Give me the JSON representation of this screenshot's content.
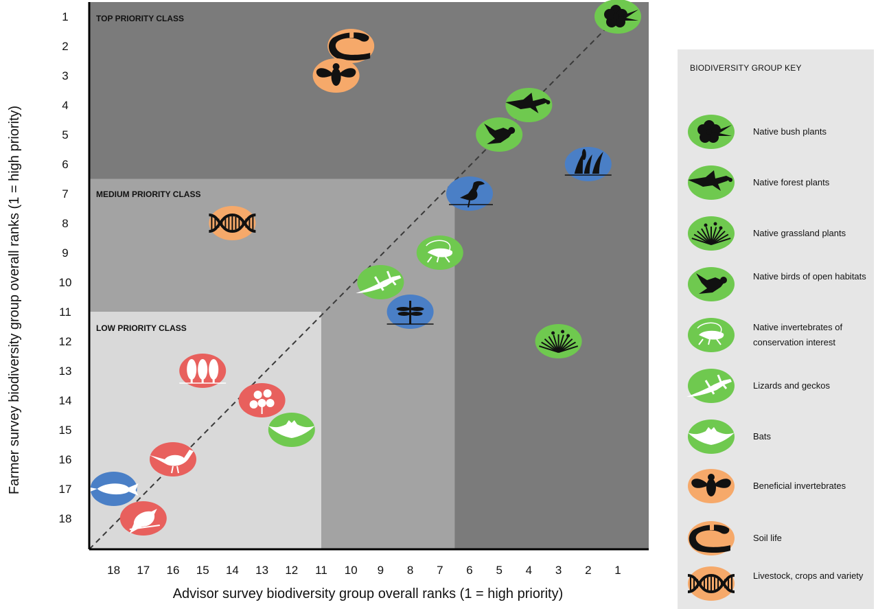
{
  "chart_data": {
    "type": "scatter",
    "xlabel": "Advisor survey biodiversity group overall ranks (1 = high priority)",
    "ylabel": "Farmer survey biodiversity group overall ranks (1 = high priority)",
    "x_ticks": [
      "18",
      "17",
      "16",
      "15",
      "14",
      "13",
      "12",
      "11",
      "10",
      "9",
      "8",
      "7",
      "6",
      "5",
      "4",
      "3",
      "2",
      "1"
    ],
    "y_ticks": [
      "1",
      "2",
      "3",
      "4",
      "5",
      "6",
      "7",
      "8",
      "9",
      "10",
      "11",
      "12",
      "13",
      "14",
      "15",
      "16",
      "17",
      "18"
    ],
    "xlim": [
      19,
      0
    ],
    "ylim": [
      19,
      0
    ],
    "x_reversed": true,
    "diagonal_line": "dashed",
    "class_regions": [
      {
        "label": "TOP PRIORITY CLASS",
        "max_rank": 19,
        "color": "#7b7b7b"
      },
      {
        "label": "MEDIUM PRIORITY CLASS",
        "max_rank": 6.5,
        "color": "#a3a3a3"
      },
      {
        "label": "LOW PRIORITY CLASS",
        "max_rank": 11,
        "color": "#d9d9d9"
      }
    ],
    "series": [
      {
        "name": "Native bush plants",
        "color": "#6fc94f",
        "icon": "flower-silhouette",
        "points": [
          {
            "x": 1,
            "y": 1
          }
        ]
      },
      {
        "name": "Soil life",
        "color": "#f6a96a",
        "icon": "worm-silhouette",
        "points": [
          {
            "x": 10,
            "y": 2
          }
        ]
      },
      {
        "name": "Beneficial invertebrates",
        "color": "#f6a96a",
        "icon": "bee-silhouette",
        "points": [
          {
            "x": 10.5,
            "y": 3
          }
        ]
      },
      {
        "name": "Native forest plants",
        "color": "#6fc94f",
        "icon": "bird-flying-silhouette",
        "points": [
          {
            "x": 4,
            "y": 4
          }
        ]
      },
      {
        "name": "Native birds of open habitats",
        "color": "#6fc94f",
        "icon": "bird-silhouette",
        "points": [
          {
            "x": 5,
            "y": 5
          }
        ]
      },
      {
        "name": "Wetland plants",
        "color": "#4a7fc6",
        "icon": "reeds-silhouette",
        "points": [
          {
            "x": 2,
            "y": 6
          }
        ]
      },
      {
        "name": "Wetland birds",
        "color": "#4a7fc6",
        "icon": "heron-silhouette",
        "points": [
          {
            "x": 6,
            "y": 7
          }
        ]
      },
      {
        "name": "Livestock, crops and variety",
        "color": "#f6a96a",
        "icon": "dna-silhouette",
        "points": [
          {
            "x": 14,
            "y": 8
          }
        ]
      },
      {
        "name": "Native invertebrates of conservation interest",
        "color": "#6fc94f",
        "icon": "weta-silhouette",
        "points": [
          {
            "x": 7,
            "y": 9
          }
        ]
      },
      {
        "name": "Lizards and geckos",
        "color": "#6fc94f",
        "icon": "lizard-silhouette",
        "points": [
          {
            "x": 9,
            "y": 10
          }
        ]
      },
      {
        "name": "Freshwater invertebrates",
        "color": "#4a7fc6",
        "icon": "dragonfly-silhouette",
        "points": [
          {
            "x": 8,
            "y": 11
          }
        ]
      },
      {
        "name": "Native grassland plants",
        "color": "#6fc94f",
        "icon": "grass-silhouette",
        "points": [
          {
            "x": 3,
            "y": 12
          }
        ]
      },
      {
        "name": "Exotic trees",
        "color": "#e8605d",
        "icon": "trees-silhouette",
        "points": [
          {
            "x": 15,
            "y": 13
          }
        ]
      },
      {
        "name": "Exotic plants",
        "color": "#e8605d",
        "icon": "flowers-silhouette",
        "points": [
          {
            "x": 13,
            "y": 14
          }
        ]
      },
      {
        "name": "Bats",
        "color": "#6fc94f",
        "icon": "bat-silhouette",
        "points": [
          {
            "x": 12,
            "y": 15
          }
        ]
      },
      {
        "name": "Game birds",
        "color": "#e8605d",
        "icon": "pheasant-silhouette",
        "points": [
          {
            "x": 16,
            "y": 16
          }
        ]
      },
      {
        "name": "Fish",
        "color": "#4a7fc6",
        "icon": "fish-silhouette",
        "points": [
          {
            "x": 18,
            "y": 17
          }
        ]
      },
      {
        "name": "Exotic birds",
        "color": "#e8605d",
        "icon": "songbird-silhouette",
        "points": [
          {
            "x": 17,
            "y": 18
          }
        ]
      }
    ]
  },
  "labels": {
    "top_class": "TOP PRIORITY CLASS",
    "medium_class": "MEDIUM PRIORITY CLASS",
    "low_class": "LOW PRIORITY CLASS"
  },
  "key": {
    "title": "BIODIVERSITY GROUP KEY",
    "items": [
      {
        "label": "Native bush plants",
        "color": "#6fc94f",
        "icon": "flower-silhouette"
      },
      {
        "label": "Native forest plants",
        "color": "#6fc94f",
        "icon": "bird-flying-silhouette"
      },
      {
        "label": "Native grassland plants",
        "color": "#6fc94f",
        "icon": "grass-silhouette"
      },
      {
        "label": "Native birds of open habitats",
        "color": "#6fc94f",
        "icon": "bird-silhouette"
      },
      {
        "label": "Native invertebrates of conservation interest",
        "color": "#6fc94f",
        "icon": "weta-silhouette"
      },
      {
        "label": "Lizards and geckos",
        "color": "#6fc94f",
        "icon": "lizard-silhouette"
      },
      {
        "label": "Bats",
        "color": "#6fc94f",
        "icon": "bat-silhouette"
      },
      {
        "label": "Beneficial invertebrates",
        "color": "#f6a96a",
        "icon": "bee-silhouette"
      },
      {
        "label": "Soil life",
        "color": "#f6a96a",
        "icon": "worm-silhouette"
      },
      {
        "label": "Livestock, crops and variety",
        "color": "#f6a96a",
        "icon": "dna-silhouette"
      }
    ]
  }
}
